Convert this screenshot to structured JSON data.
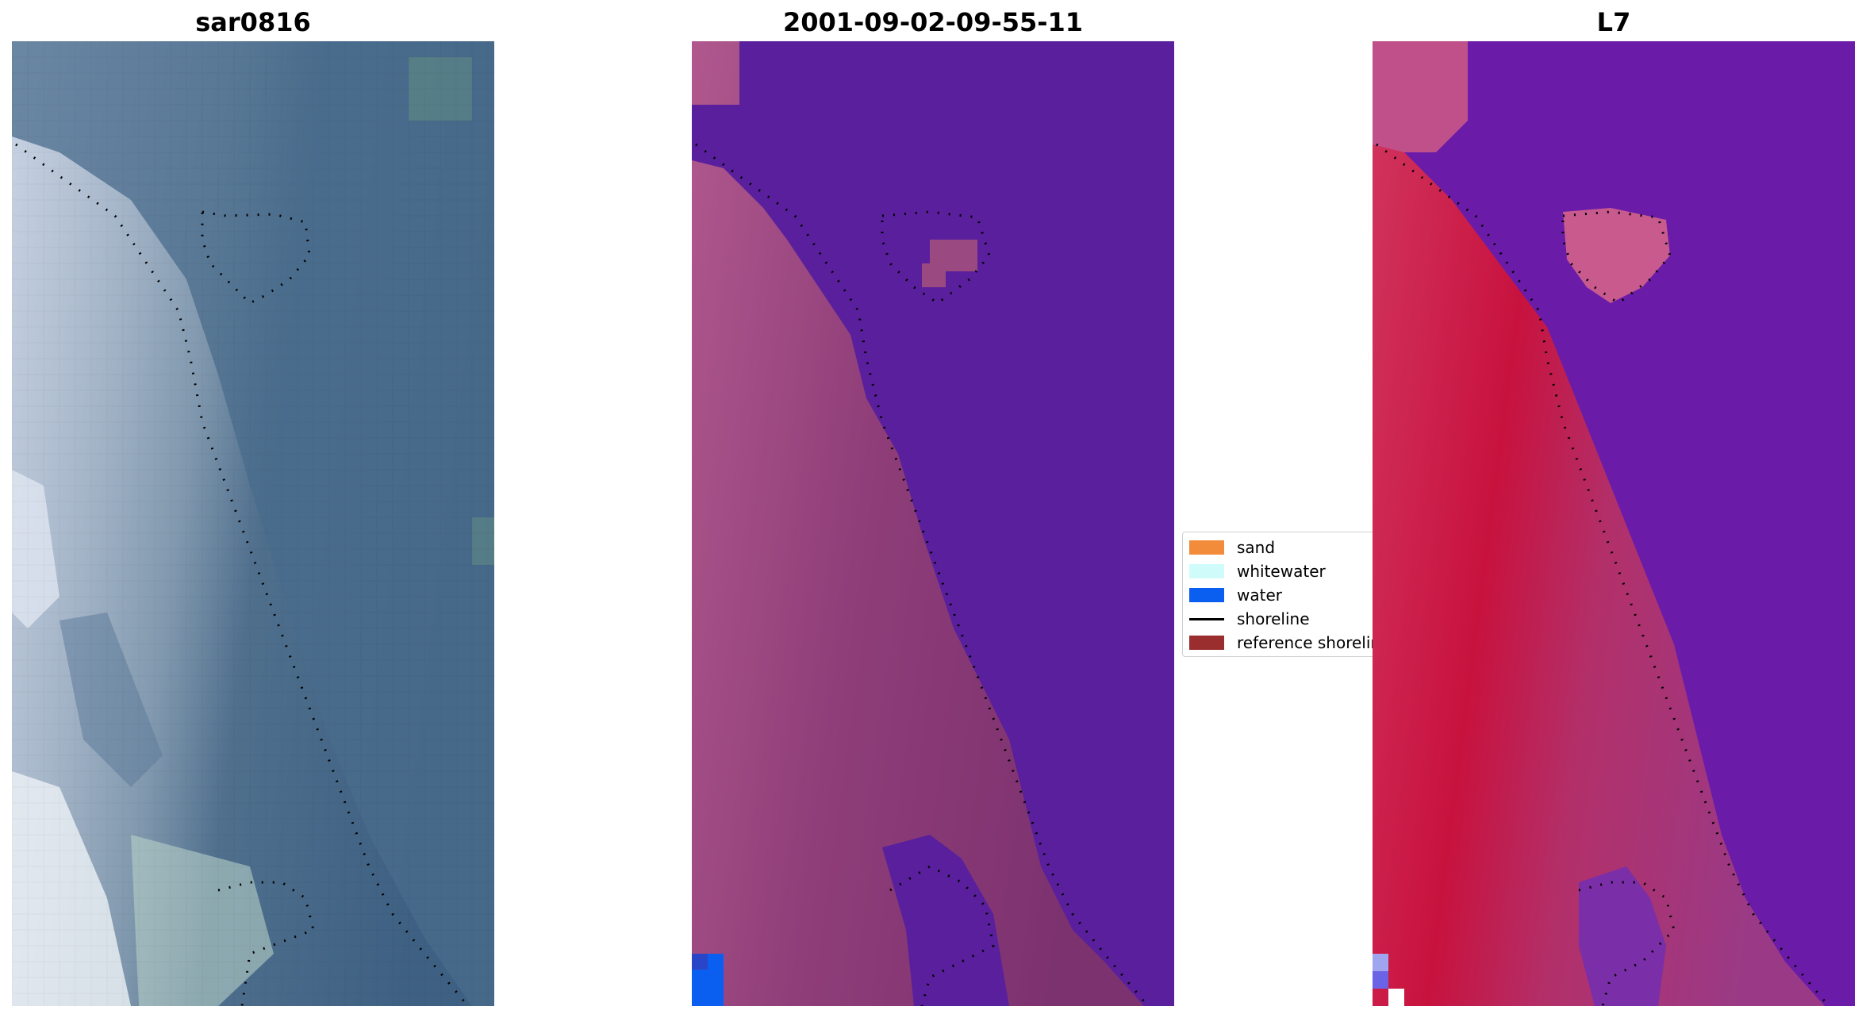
{
  "panels": [
    {
      "title": "sar0816",
      "kind": "rgb"
    },
    {
      "title": "2001-09-02-09-55-11",
      "kind": "classified"
    },
    {
      "title": "L7",
      "kind": "index"
    }
  ],
  "legend": {
    "items": [
      {
        "label": "sand",
        "color": "#f28b3a",
        "type": "patch"
      },
      {
        "label": "whitewater",
        "color": "#cffcfb",
        "type": "patch"
      },
      {
        "label": "water",
        "color": "#0a5ef0",
        "type": "patch"
      },
      {
        "label": "shoreline",
        "color": "#000000",
        "type": "line"
      },
      {
        "label": "reference shoreline",
        "color": "#9a2e2e",
        "type": "patch"
      }
    ]
  },
  "colors": {
    "water_class": "#5a1f9c",
    "land_class": "#8c3a78",
    "index_high": "#c8123e",
    "index_low": "#6a1ba8",
    "rgb_water": "#3f6585",
    "rgb_land": "#a9b6c8"
  }
}
